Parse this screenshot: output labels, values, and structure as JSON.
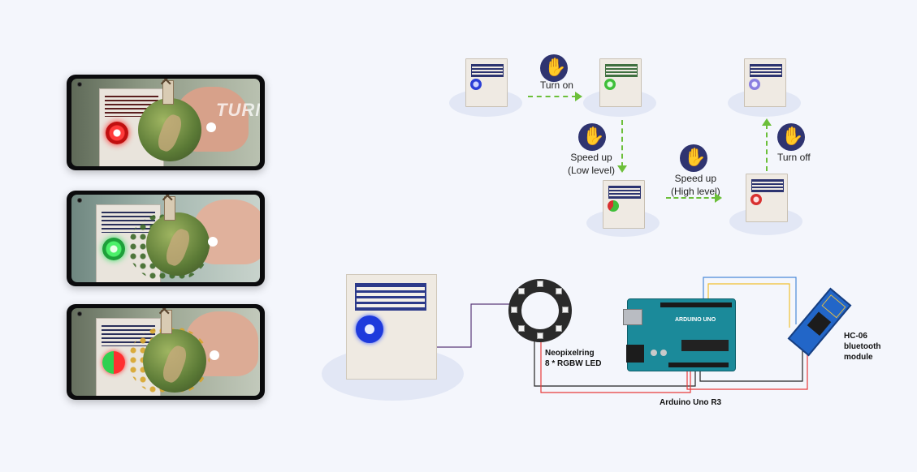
{
  "phones": [
    {
      "overlay_text": "TURN",
      "led_color": "#e0262c",
      "state": "red"
    },
    {
      "overlay_text": "",
      "led_color": "#2fd65a",
      "state": "green"
    },
    {
      "overlay_text": "",
      "led_color": "#e0262c",
      "state": "red-green"
    }
  ],
  "flow": {
    "turn_on": "Turn on",
    "speed_up_low_1": "Speed up",
    "speed_up_low_2": "(Low level)",
    "speed_up_high_1": "Speed up",
    "speed_up_high_2": "(High level)",
    "turn_off": "Turn off",
    "led_colors": {
      "off": "#2a3fd6",
      "on": "#3fbf3a",
      "low": "#3fbf3a",
      "high": "#d83030",
      "final": "#8a7fe0"
    }
  },
  "circuit": {
    "neopixel_line1": "Neopixelring",
    "neopixel_line2": "8 * RGBW LED",
    "arduino_label": "Arduino Uno R3",
    "arduino_logo": "ARDUINO UNO",
    "bt_line1": "HC-06",
    "bt_line2": "bluetooth",
    "bt_line3": "module",
    "wire_colors": {
      "signal": "#5a3a7a",
      "power": "#e83a3a",
      "ground": "#222222",
      "tx": "#4a8ad8",
      "rx": "#f0c030"
    }
  }
}
